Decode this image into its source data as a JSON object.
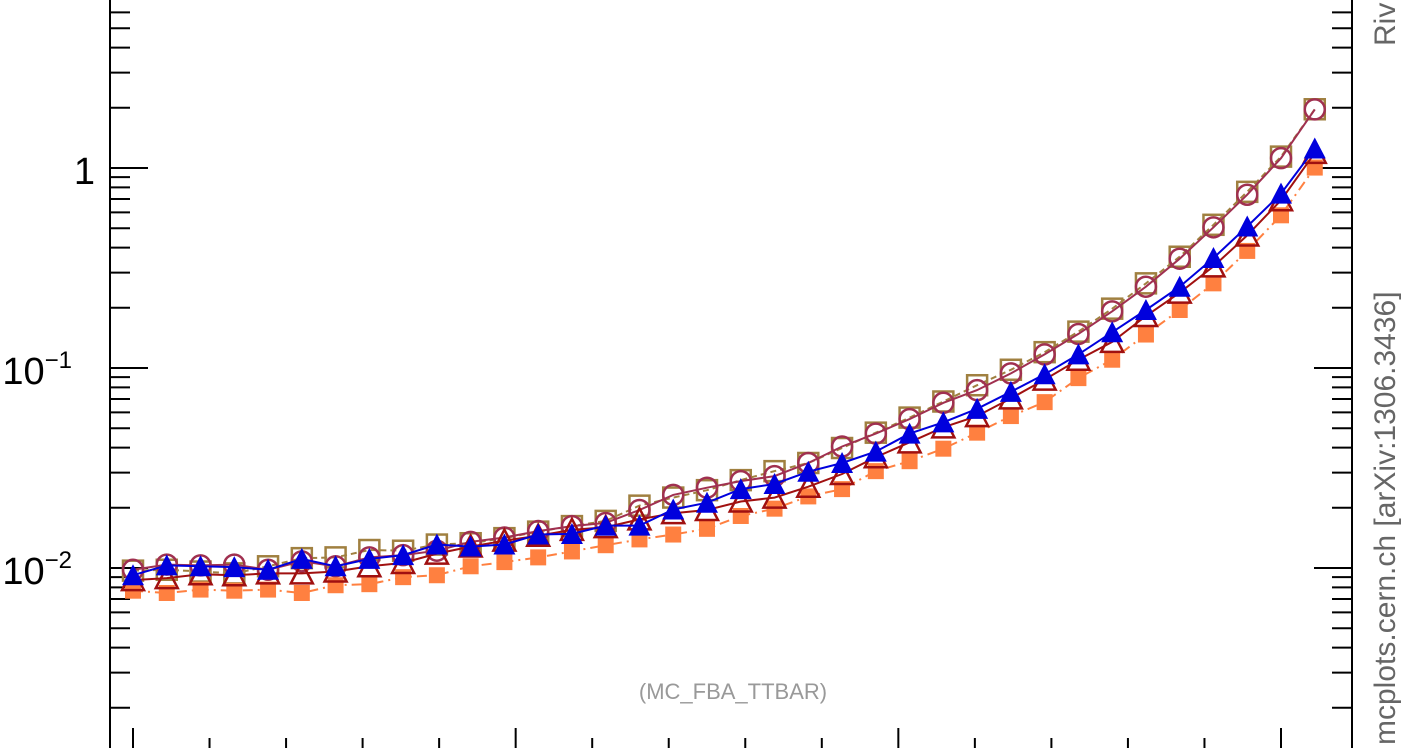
{
  "chart_data": {
    "type": "line",
    "title": "",
    "xlabel": "",
    "ylabel": "",
    "yscale": "log",
    "ylim": [
      0.0011,
      200
    ],
    "xlim": [
      0,
      34.6
    ],
    "ytick_labels": [
      {
        "value": 1,
        "base": "1",
        "exp": ""
      },
      {
        "value": 0.1,
        "base": "10",
        "exp": "−1"
      },
      {
        "value": 0.01,
        "base": "10",
        "exp": "−2"
      }
    ],
    "annotation": "(MC_FBA_TTBAR)",
    "side_label": "mcplots.cern.ch [arXiv:1306.3436]",
    "side_label_top": "Riv",
    "x": [
      0,
      1,
      2,
      3,
      4,
      5,
      6,
      7,
      8,
      9,
      10,
      11,
      12,
      13,
      14,
      15,
      16,
      17,
      18,
      19,
      20,
      21,
      22,
      23,
      24,
      25,
      26,
      27,
      28,
      29,
      30,
      31,
      32,
      33,
      34
    ],
    "series": [
      {
        "color": "#a08040",
        "marker": "open-square",
        "dash": "6,4",
        "values": [
          0.0097,
          0.0098,
          0.0096,
          0.0094,
          0.0102,
          0.0112,
          0.0113,
          0.0123,
          0.0122,
          0.0131,
          0.0133,
          0.0141,
          0.0152,
          0.0162,
          0.0172,
          0.0205,
          0.0225,
          0.0245,
          0.0275,
          0.0305,
          0.0335,
          0.0398,
          0.0475,
          0.0565,
          0.068,
          0.082,
          0.098,
          0.12,
          0.152,
          0.198,
          0.265,
          0.36,
          0.52,
          0.76,
          1.14
        ]
      },
      {
        "color": "#a03050",
        "marker": "open-circle",
        "dash": "",
        "values": [
          0.0098,
          0.0104,
          0.0103,
          0.0104,
          0.0098,
          0.0108,
          0.0102,
          0.0113,
          0.0116,
          0.0122,
          0.0135,
          0.0142,
          0.0153,
          0.0162,
          0.0168,
          0.0195,
          0.0232,
          0.0252,
          0.0272,
          0.0288,
          0.0335,
          0.0405,
          0.047,
          0.0555,
          0.067,
          0.0775,
          0.094,
          0.117,
          0.148,
          0.192,
          0.255,
          0.352,
          0.505,
          0.735,
          1.12
        ]
      },
      {
        "color": "#ff8040",
        "marker": "filled-square",
        "dash": "10,5,2,5",
        "values": [
          0.0077,
          0.0075,
          0.0078,
          0.0077,
          0.0078,
          0.0075,
          0.0082,
          0.0083,
          0.009,
          0.0092,
          0.0102,
          0.0107,
          0.0113,
          0.0121,
          0.013,
          0.0139,
          0.0147,
          0.0157,
          0.0182,
          0.0198,
          0.0228,
          0.0248,
          0.0305,
          0.0342,
          0.0395,
          0.0475,
          0.0575,
          0.0675,
          0.089,
          0.11,
          0.147,
          0.195,
          0.265,
          0.385,
          0.58
        ]
      },
      {
        "color": "#a01010",
        "marker": "open-triangle",
        "dash": "",
        "values": [
          0.0087,
          0.0089,
          0.0093,
          0.0092,
          0.0094,
          0.0094,
          0.0096,
          0.0102,
          0.0106,
          0.0118,
          0.0128,
          0.0137,
          0.0145,
          0.0155,
          0.016,
          0.0175,
          0.0188,
          0.0195,
          0.0215,
          0.0225,
          0.0255,
          0.0295,
          0.0358,
          0.0425,
          0.0505,
          0.0575,
          0.0705,
          0.0875,
          0.11,
          0.135,
          0.182,
          0.238,
          0.322,
          0.46,
          0.69
        ]
      },
      {
        "color": "#0000dd",
        "marker": "filled-triangle",
        "dash": "",
        "values": [
          0.0092,
          0.0103,
          0.0102,
          0.0101,
          0.0098,
          0.0111,
          0.0102,
          0.0111,
          0.0116,
          0.0131,
          0.0128,
          0.0131,
          0.0147,
          0.0148,
          0.0163,
          0.0163,
          0.0196,
          0.0212,
          0.0248,
          0.0263,
          0.0303,
          0.0335,
          0.0382,
          0.047,
          0.0535,
          0.0625,
          0.076,
          0.093,
          0.117,
          0.151,
          0.195,
          0.255,
          0.355,
          0.51,
          0.745
        ]
      }
    ]
  }
}
